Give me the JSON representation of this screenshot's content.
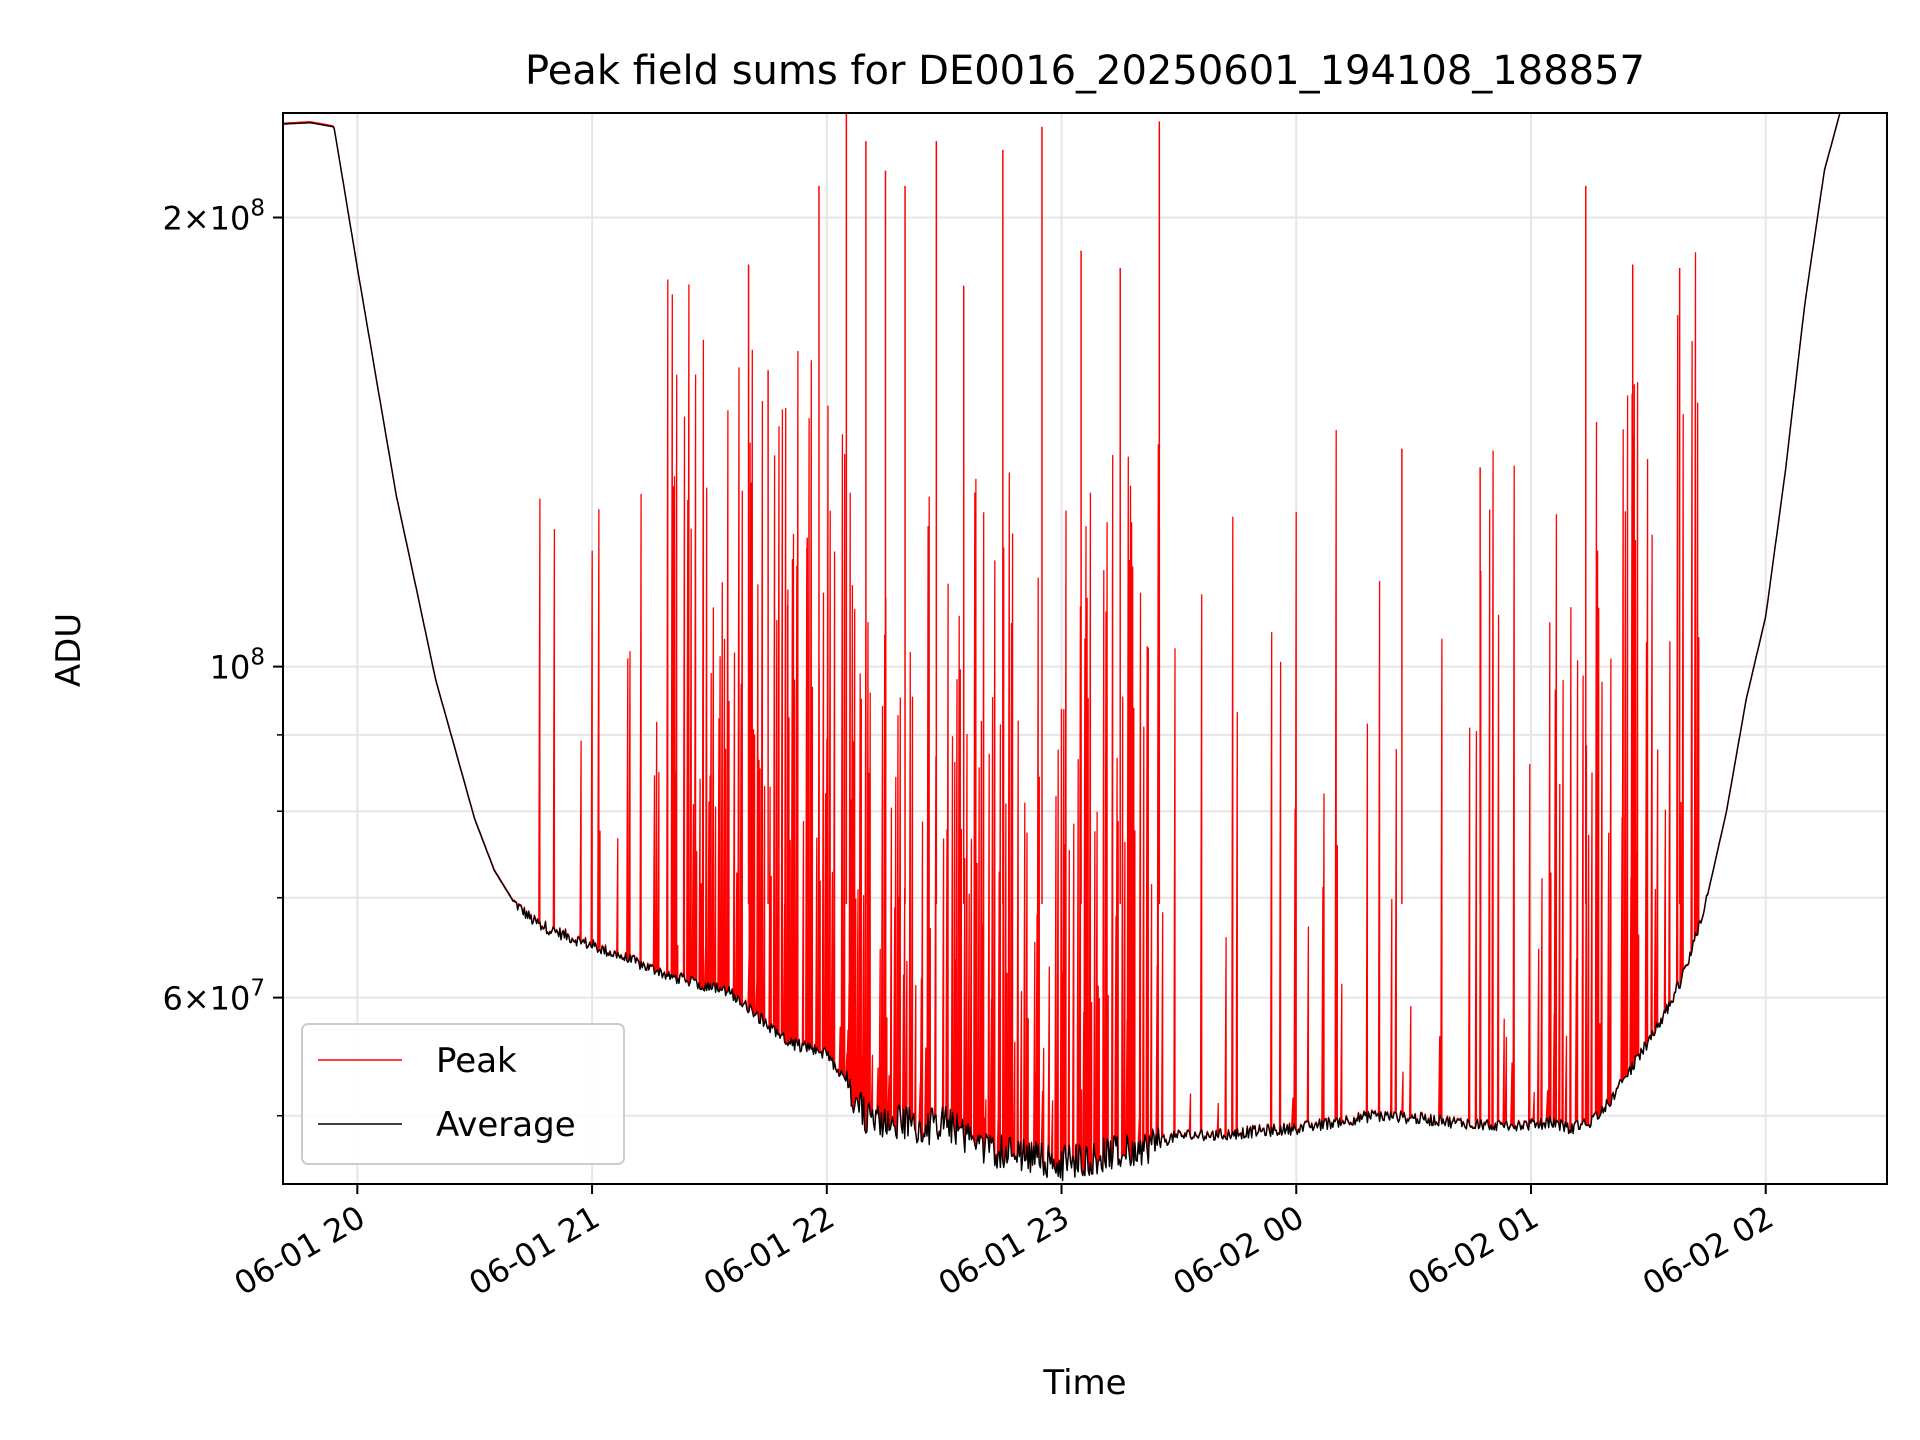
{
  "chart_data": {
    "type": "line",
    "title": "Peak field sums for DE0016_20250601_194108_188857",
    "xlabel": "Time",
    "ylabel": "ADU",
    "y_scale": "log",
    "ylim": [
      45000000,
      235000000
    ],
    "xlim": [
      "2025-06-01T19:41",
      "2025-06-02T02:31"
    ],
    "grid": true,
    "legend_position": "lower-left",
    "x_ticks": [
      {
        "t": "2025-06-01T20:00",
        "label": "06-01 20"
      },
      {
        "t": "2025-06-01T21:00",
        "label": "06-01 21"
      },
      {
        "t": "2025-06-01T22:00",
        "label": "06-01 22"
      },
      {
        "t": "2025-06-01T23:00",
        "label": "06-01 23"
      },
      {
        "t": "2025-06-02T00:00",
        "label": "06-02 00"
      },
      {
        "t": "2025-06-02T01:00",
        "label": "06-02 01"
      },
      {
        "t": "2025-06-02T02:00",
        "label": "06-02 02"
      }
    ],
    "y_major_ticks": [
      {
        "value": 60000000,
        "base": "6",
        "exp": "7"
      },
      {
        "value": 100000000,
        "base": "",
        "exp": "8"
      },
      {
        "value": 200000000,
        "base": "2",
        "exp": "8"
      }
    ],
    "y_minor_ticks": [
      50000000,
      70000000,
      80000000,
      90000000
    ],
    "series": [
      {
        "name": "Peak",
        "color": "#ff0000",
        "points": [
          [
            "2025-06-01T21:40",
            186000000
          ],
          [
            "2025-06-01T21:45",
            158000000
          ],
          [
            "2025-06-01T21:50",
            110000000
          ],
          [
            "2025-06-01T21:55",
            122000000
          ],
          [
            "2025-06-01T21:58",
            210000000
          ],
          [
            "2025-06-01T22:05",
            240000000
          ],
          [
            "2025-06-01T22:10",
            225000000
          ],
          [
            "2025-06-01T22:15",
            215000000
          ],
          [
            "2025-06-01T22:20",
            210000000
          ],
          [
            "2025-06-01T22:28",
            225000000
          ],
          [
            "2025-06-01T22:35",
            180000000
          ],
          [
            "2025-06-01T22:45",
            222000000
          ],
          [
            "2025-06-01T22:55",
            230000000
          ],
          [
            "2025-06-01T23:05",
            190000000
          ],
          [
            "2025-06-01T23:15",
            185000000
          ],
          [
            "2025-06-01T23:25",
            232000000
          ],
          [
            "2025-06-02T00:27",
            140000000
          ],
          [
            "2025-06-02T00:47",
            136000000
          ],
          [
            "2025-06-02T01:14",
            210000000
          ],
          [
            "2025-06-02T01:26",
            186000000
          ],
          [
            "2025-06-02T01:38",
            185000000
          ]
        ]
      },
      {
        "name": "Average",
        "color": "#000000",
        "points": [
          [
            "2025-06-01T19:41",
            231000000
          ],
          [
            "2025-06-01T19:48",
            231500000
          ],
          [
            "2025-06-01T19:54",
            230000000
          ],
          [
            "2025-06-01T19:55",
            222000000
          ],
          [
            "2025-06-01T20:00",
            185000000
          ],
          [
            "2025-06-01T20:05",
            155000000
          ],
          [
            "2025-06-01T20:10",
            130000000
          ],
          [
            "2025-06-01T20:15",
            113000000
          ],
          [
            "2025-06-01T20:20",
            98000000
          ],
          [
            "2025-06-01T20:25",
            88000000
          ],
          [
            "2025-06-01T20:30",
            79000000
          ],
          [
            "2025-06-01T20:35",
            73000000
          ],
          [
            "2025-06-01T20:40",
            69500000
          ],
          [
            "2025-06-01T20:45",
            67500000
          ],
          [
            "2025-06-01T20:50",
            66500000
          ],
          [
            "2025-06-01T21:00",
            65000000
          ],
          [
            "2025-06-01T21:10",
            63500000
          ],
          [
            "2025-06-01T21:20",
            62000000
          ],
          [
            "2025-06-01T21:30",
            61000000
          ],
          [
            "2025-06-01T21:35",
            60500000
          ],
          [
            "2025-06-01T21:40",
            59000000
          ],
          [
            "2025-06-01T21:45",
            57500000
          ],
          [
            "2025-06-01T21:50",
            56000000
          ],
          [
            "2025-06-01T21:55",
            55500000
          ],
          [
            "2025-06-01T22:00",
            55000000
          ],
          [
            "2025-06-01T22:05",
            52500000
          ],
          [
            "2025-06-01T22:10",
            50000000
          ],
          [
            "2025-06-01T22:15",
            49500000
          ],
          [
            "2025-06-01T22:20",
            49500000
          ],
          [
            "2025-06-01T22:25",
            49000000
          ],
          [
            "2025-06-01T22:30",
            49500000
          ],
          [
            "2025-06-01T22:40",
            47500000
          ],
          [
            "2025-06-01T22:50",
            47000000
          ],
          [
            "2025-06-01T23:00",
            46500000
          ],
          [
            "2025-06-01T23:10",
            47000000
          ],
          [
            "2025-06-01T23:20",
            47500000
          ],
          [
            "2025-06-01T23:30",
            48500000
          ],
          [
            "2025-06-01T23:40",
            48500000
          ],
          [
            "2025-06-01T23:50",
            48800000
          ],
          [
            "2025-06-02T00:00",
            49000000
          ],
          [
            "2025-06-02T00:10",
            49500000
          ],
          [
            "2025-06-02T00:20",
            50000000
          ],
          [
            "2025-06-02T00:30",
            49800000
          ],
          [
            "2025-06-02T00:40",
            49500000
          ],
          [
            "2025-06-02T00:50",
            49300000
          ],
          [
            "2025-06-02T01:00",
            49300000
          ],
          [
            "2025-06-02T01:05",
            49500000
          ],
          [
            "2025-06-02T01:10",
            49000000
          ],
          [
            "2025-06-02T01:15",
            49500000
          ],
          [
            "2025-06-02T01:20",
            51000000
          ],
          [
            "2025-06-02T01:25",
            53500000
          ],
          [
            "2025-06-02T01:30",
            56000000
          ],
          [
            "2025-06-02T01:35",
            59000000
          ],
          [
            "2025-06-02T01:40",
            63000000
          ],
          [
            "2025-06-02T01:45",
            70000000
          ],
          [
            "2025-06-02T01:50",
            80000000
          ],
          [
            "2025-06-02T01:55",
            95000000
          ],
          [
            "2025-06-02T02:00",
            108000000
          ],
          [
            "2025-06-02T02:05",
            135000000
          ],
          [
            "2025-06-02T02:10",
            175000000
          ],
          [
            "2025-06-02T02:15",
            215000000
          ],
          [
            "2025-06-02T02:19",
            235000000
          ],
          [
            "2025-06-02T02:31",
            235000000
          ]
        ]
      }
    ]
  }
}
